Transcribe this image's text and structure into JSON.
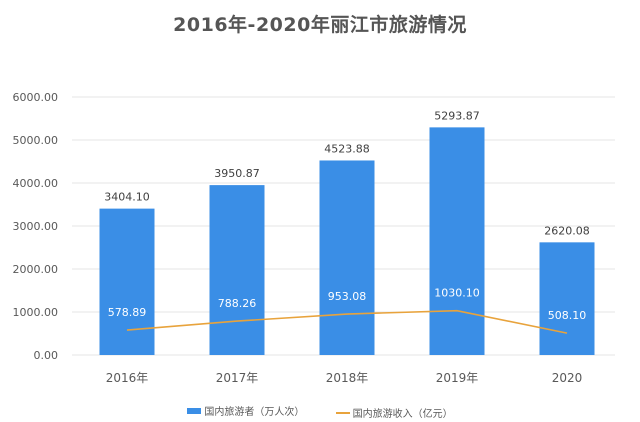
{
  "title": "2016年-2020年丽江市旅游情况",
  "colors": {
    "bar": "#3a8ee6",
    "line": "#e8a33c",
    "grid": "#e6e6e6",
    "axis_text": "#595959"
  },
  "legend": [
    {
      "label": "国内旅游者（万人次）",
      "type": "bar"
    },
    {
      "label": "国内旅游收入（亿元）",
      "type": "line"
    }
  ],
  "chart_data": {
    "type": "bar",
    "title": "2016年-2020年丽江市旅游情况",
    "categories": [
      "2016年",
      "2017年",
      "2018年",
      "2019年",
      "2020"
    ],
    "series": [
      {
        "name": "国内旅游者（万人次）",
        "type": "bar",
        "values": [
          3404.1,
          3950.87,
          4523.88,
          5293.87,
          2620.08
        ],
        "labels": [
          "3404.10",
          "3950.87",
          "4523.88",
          "5293.87",
          "2620.08"
        ]
      },
      {
        "name": "国内旅游收入（亿元）",
        "type": "line",
        "values": [
          578.89,
          788.26,
          953.08,
          1030.1,
          508.1
        ],
        "labels": [
          "578.89",
          "788.26",
          "953.08",
          "1030.10",
          "508.10"
        ]
      }
    ],
    "yticks": [
      "0.00",
      "1000.00",
      "2000.00",
      "3000.00",
      "4000.00",
      "5000.00",
      "6000.00"
    ],
    "ylim": [
      0,
      6000
    ],
    "xlabel": "",
    "ylabel": "",
    "grid": true,
    "legend_position": "bottom"
  }
}
